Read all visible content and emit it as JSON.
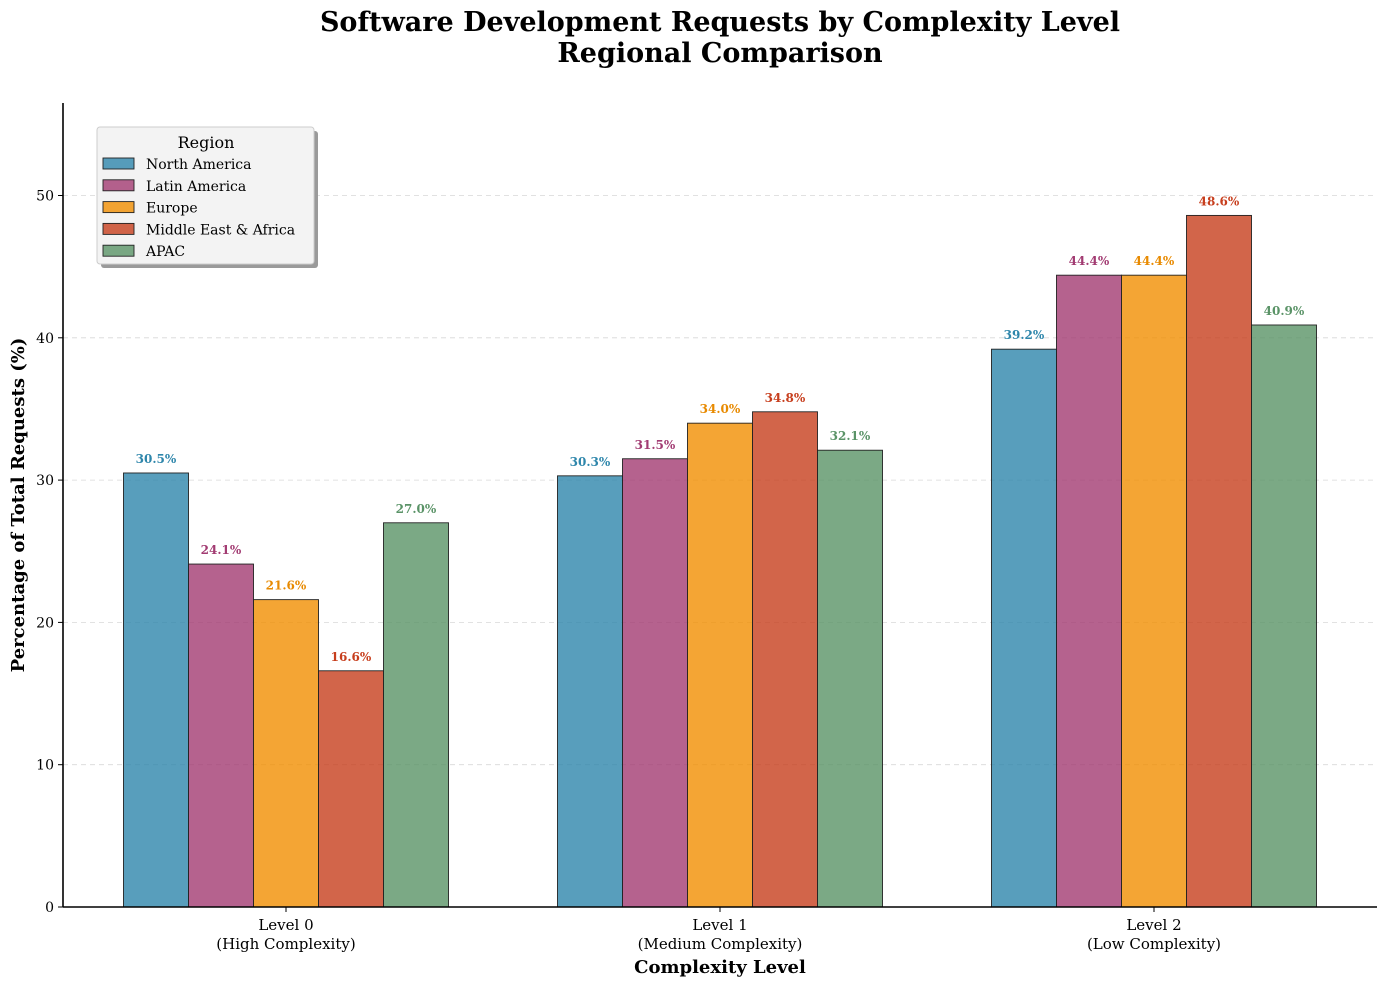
{
  "chart_data": {
    "type": "bar",
    "title": "Software Development Requests by Complexity Level",
    "subtitle": "Regional Comparison",
    "xlabel": "Complexity Level",
    "ylabel": "Percentage of Total Requests (%)",
    "ylim": [
      0,
      56.5
    ],
    "yticks": [
      0,
      10,
      20,
      30,
      40,
      50
    ],
    "grid": "horizontal dashed",
    "legend_title": "Region",
    "legend_placement": "top-left",
    "categories": [
      {
        "line1": "Level 0",
        "line2": "(High Complexity)"
      },
      {
        "line1": "Level 1",
        "line2": "(Medium Complexity)"
      },
      {
        "line1": "Level 2",
        "line2": "(Low Complexity)"
      }
    ],
    "series": [
      {
        "name": "North America",
        "color": "#2E86AB",
        "label_color": "#2E86AB",
        "values": [
          30.5,
          30.3,
          39.2
        ],
        "labels": [
          "30.5%",
          "30.3%",
          "39.2%"
        ]
      },
      {
        "name": "Latin America",
        "color": "#A23B72",
        "label_color": "#A23B72",
        "values": [
          24.1,
          31.5,
          44.4
        ],
        "labels": [
          "24.1%",
          "31.5%",
          "44.4%"
        ]
      },
      {
        "name": "Europe",
        "color": "#F18F01",
        "label_color": "#E88A00",
        "values": [
          21.6,
          34.0,
          44.4
        ],
        "labels": [
          "21.6%",
          "34.0%",
          "44.4%"
        ]
      },
      {
        "name": "Middle East & Africa",
        "color": "#C73E1D",
        "label_color": "#C73E1D",
        "values": [
          16.6,
          34.8,
          48.6
        ],
        "labels": [
          "16.6%",
          "34.8%",
          "48.6%"
        ]
      },
      {
        "name": "APAC",
        "color": "#5A9367",
        "label_color": "#5A9367",
        "values": [
          27.0,
          32.1,
          40.9
        ],
        "labels": [
          "27.0%",
          "32.1%",
          "40.9%"
        ]
      }
    ]
  }
}
